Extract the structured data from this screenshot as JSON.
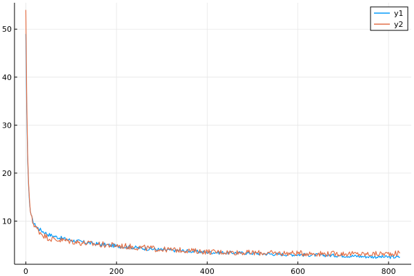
{
  "chart_data": {
    "type": "line",
    "title": "",
    "xlabel": "",
    "ylabel": "",
    "xlim": [
      -25,
      850
    ],
    "ylim": [
      1.0,
      55.5
    ],
    "xticks": [
      0,
      200,
      400,
      600,
      800
    ],
    "yticks": [
      10,
      20,
      30,
      40,
      50
    ],
    "xtick_labels": [
      "0",
      "200",
      "400",
      "600",
      "800"
    ],
    "ytick_labels": [
      "10",
      "20",
      "30",
      "40",
      "50"
    ],
    "grid": true,
    "legend_position": "top-right",
    "series": [
      {
        "name": "y1",
        "color": "#009AFA",
        "x": [
          0,
          2,
          4,
          6,
          8,
          10,
          15,
          20,
          25,
          30,
          40,
          50,
          60,
          80,
          100,
          120,
          150,
          200,
          250,
          300,
          350,
          400,
          450,
          500,
          550,
          600,
          650,
          700,
          750,
          800,
          825
        ],
        "y": [
          49.0,
          33.0,
          23.0,
          17.5,
          14.0,
          12.0,
          10.0,
          9.2,
          8.7,
          8.3,
          7.7,
          7.2,
          6.9,
          6.4,
          6.0,
          5.7,
          5.3,
          4.8,
          4.4,
          4.0,
          3.8,
          3.5,
          3.4,
          3.3,
          3.1,
          3.0,
          2.9,
          2.8,
          2.6,
          2.5,
          2.5
        ]
      },
      {
        "name": "y2",
        "color": "#E26F46",
        "x": [
          0,
          2,
          4,
          6,
          8,
          10,
          15,
          20,
          25,
          30,
          40,
          50,
          60,
          80,
          100,
          120,
          150,
          200,
          250,
          300,
          350,
          400,
          450,
          500,
          550,
          600,
          650,
          700,
          750,
          800,
          825
        ],
        "y": [
          54.0,
          35.0,
          24.0,
          18.0,
          14.5,
          12.0,
          9.8,
          9.0,
          8.3,
          7.8,
          7.0,
          6.5,
          6.2,
          6.0,
          5.8,
          5.5,
          5.2,
          4.9,
          4.5,
          4.1,
          3.9,
          3.6,
          3.5,
          3.4,
          3.3,
          3.3,
          3.2,
          3.2,
          3.1,
          3.2,
          3.3
        ]
      }
    ]
  }
}
